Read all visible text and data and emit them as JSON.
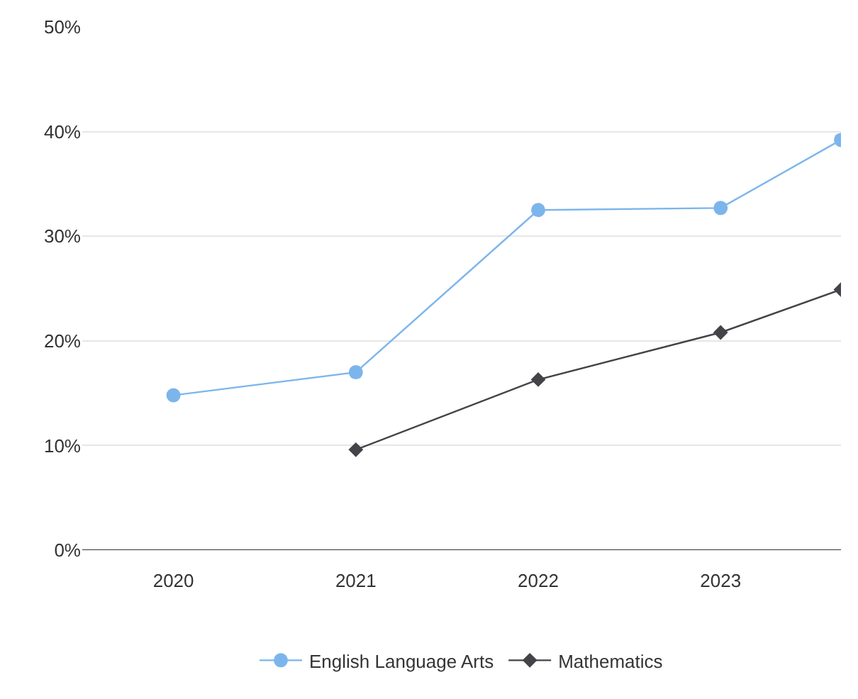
{
  "chart_data": {
    "type": "line",
    "xlim": [
      2019.5,
      2023.66
    ],
    "xticks": [
      2020,
      2021,
      2022,
      2023
    ],
    "ylim": [
      0,
      50
    ],
    "yticks": [
      {
        "value": 0,
        "label": "0%"
      },
      {
        "value": 10,
        "label": "10%"
      },
      {
        "value": 20,
        "label": "20%"
      },
      {
        "value": 30,
        "label": "30%"
      },
      {
        "value": 40,
        "label": "40%"
      },
      {
        "value": 50,
        "label": "50%"
      }
    ],
    "grid": "y",
    "legend": "bottom",
    "line_style": "solid",
    "series": [
      {
        "name": "English Language Arts",
        "color": "#7cb5ec",
        "marker": "circle",
        "x": [
          2020,
          2021,
          2022,
          2023,
          2023.66
        ],
        "values": [
          14.8,
          17.0,
          32.5,
          32.7,
          39.2
        ]
      },
      {
        "name": "Mathematics",
        "color": "#434348",
        "marker": "diamond",
        "x": [
          2021,
          2022,
          2023,
          2023.66
        ],
        "values": [
          9.6,
          16.3,
          20.8,
          24.9
        ]
      }
    ]
  }
}
